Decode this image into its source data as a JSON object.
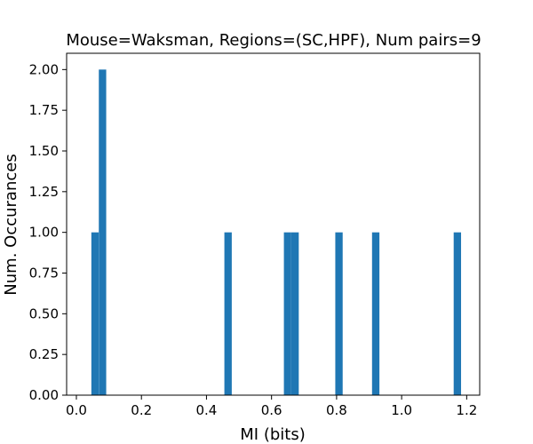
{
  "chart_data": {
    "type": "bar",
    "title": "Mouse=Waksman, Regions=(SC,HPF), Num pairs=9",
    "xlabel": "MI (bits)",
    "ylabel": "Num. Occurances",
    "xlim": [
      -0.03,
      1.24
    ],
    "ylim": [
      0,
      2.1
    ],
    "xticks": [
      "0.0",
      "0.2",
      "0.4",
      "0.6",
      "0.8",
      "1.0",
      "1.2"
    ],
    "yticks": [
      "0.00",
      "0.25",
      "0.50",
      "0.75",
      "1.00",
      "1.25",
      "1.50",
      "1.75",
      "2.00"
    ],
    "bin_width": 0.0227,
    "bins": [
      {
        "x0": 0.046,
        "value": 1
      },
      {
        "x0": 0.069,
        "value": 2
      },
      {
        "x0": 0.455,
        "value": 1
      },
      {
        "x0": 0.638,
        "value": 1
      },
      {
        "x0": 0.661,
        "value": 1
      },
      {
        "x0": 0.796,
        "value": 1
      },
      {
        "x0": 0.909,
        "value": 1
      },
      {
        "x0": 1.16,
        "value": 1
      }
    ],
    "grid": false,
    "bar_color": "#1f77b4"
  }
}
